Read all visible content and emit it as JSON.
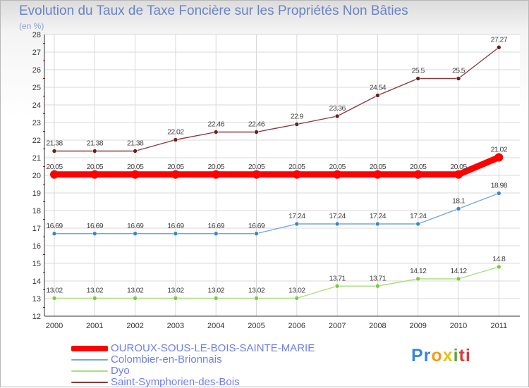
{
  "header": {
    "title": "Evolution du Taux de Taxe Foncière sur les Propriétés Non Bâties",
    "subtitle": "(en %)"
  },
  "chart_data": {
    "type": "line",
    "title": "Evolution du Taux de Taxe Foncière sur les Propriétés Non Bâties",
    "ylabel": "(en %)",
    "xlabel": "",
    "x": [
      2000,
      2001,
      2002,
      2003,
      2004,
      2005,
      2006,
      2007,
      2008,
      2009,
      2010,
      2011
    ],
    "ylim": [
      12,
      28
    ],
    "yticks": [
      12,
      13,
      14,
      15,
      16,
      17,
      18,
      19,
      20,
      21,
      22,
      23,
      24,
      25,
      26,
      27,
      28
    ],
    "grid": true,
    "series": [
      {
        "name": "OUROUX-SOUS-LE-BOIS-SAINTE-MARIE",
        "values": [
          20.05,
          20.05,
          20.05,
          20.05,
          20.05,
          20.05,
          20.05,
          20.05,
          20.05,
          20.05,
          20.05,
          21.02
        ],
        "labels": [
          "20.05",
          "20.05",
          "20.05",
          "20.05",
          "20.05",
          "20.05",
          "20.05",
          "20.05",
          "20.05",
          "20.05",
          "20.05",
          "21.02"
        ],
        "color": "#ff0000",
        "highlight": true
      },
      {
        "name": "Colombier-en-Brionnais",
        "values": [
          16.69,
          16.69,
          16.69,
          16.69,
          16.69,
          16.69,
          17.24,
          17.24,
          17.24,
          17.24,
          18.1,
          18.98
        ],
        "labels": [
          "16.69",
          "16.69",
          "16.69",
          "16.69",
          "16.69",
          "16.69",
          "17.24",
          "17.24",
          "17.24",
          "17.24",
          "18.1",
          "18.98"
        ],
        "color": "#6fa8dc",
        "marker": "#3d85c6"
      },
      {
        "name": "Dyo",
        "values": [
          13.02,
          13.02,
          13.02,
          13.02,
          13.02,
          13.02,
          13.02,
          13.71,
          13.71,
          14.12,
          14.12,
          14.8
        ],
        "labels": [
          "13.02",
          "13.02",
          "13.02",
          "13.02",
          "13.02",
          "13.02",
          "13.02",
          "13.71",
          "13.71",
          "14.12",
          "14.12",
          "14.8"
        ],
        "color": "#a8e07a",
        "marker": "#7acc3a"
      },
      {
        "name": "Saint-Symphorien-des-Bois",
        "values": [
          21.38,
          21.38,
          21.38,
          22.02,
          22.46,
          22.46,
          22.9,
          23.36,
          24.54,
          25.5,
          25.5,
          27.27
        ],
        "labels": [
          "21.38",
          "21.38",
          "21.38",
          "22.02",
          "22.46",
          "22.46",
          "22.9",
          "23.36",
          "24.54",
          "25.5",
          "25.5",
          "27.27"
        ],
        "color": "#8b3a3a",
        "marker": "#6b1f1f"
      }
    ]
  },
  "legend": {
    "items": [
      {
        "label": "OUROUX-SOUS-LE-BOIS-SAINTE-MARIE",
        "color": "#ff0000"
      },
      {
        "label": "Colombier-en-Brionnais",
        "color": "#6fa8dc"
      },
      {
        "label": "Dyo",
        "color": "#a8e07a"
      },
      {
        "label": "Saint-Symphorien-des-Bois",
        "color": "#8b3a3a"
      }
    ]
  },
  "logo": {
    "l1": "Pr",
    "l2": "o",
    "l3": "x",
    "l4": "i",
    "l5": "ti"
  }
}
